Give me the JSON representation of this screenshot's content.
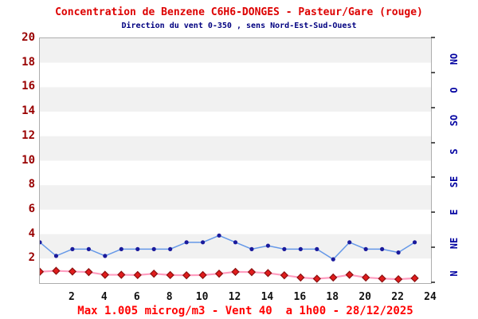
{
  "chart_data": {
    "type": "line",
    "title": "Concentration de Benzene C6H6-DONGES - Pasteur/Gare (rouge)",
    "subtitle": "Direction du vent 0-350 , sens Nord-Est-Sud-Ouest",
    "annotation": "Max 1.005 microg/m3 - Vent 40  a 1h00 - 28/12/2025",
    "x_hours": [
      0,
      1,
      2,
      3,
      4,
      5,
      6,
      7,
      8,
      9,
      10,
      11,
      12,
      13,
      14,
      15,
      16,
      17,
      18,
      19,
      20,
      21,
      22,
      23
    ],
    "x_tick_labels": [
      2,
      4,
      6,
      8,
      10,
      12,
      14,
      16,
      18,
      20,
      22,
      24
    ],
    "x_range": [
      0,
      24
    ],
    "y_left": {
      "range": [
        0,
        20
      ],
      "ticks": [
        20,
        18,
        16,
        14,
        12,
        10,
        8,
        6,
        4,
        2
      ],
      "color": "#990000"
    },
    "y_right": {
      "labels": [
        "N",
        "NE",
        "E",
        "SE",
        "S",
        "SO",
        "O",
        "NO"
      ],
      "degrees": [
        0,
        45,
        90,
        135,
        180,
        225,
        270,
        315
      ],
      "color": "#0000a0",
      "note": "wind direction axis: degrees/18 = left-axis units"
    },
    "series": [
      {
        "name": "Direction du vent",
        "unit": "degres",
        "line_color": "#6598e8",
        "marker": "circle",
        "marker_color": "#1a1a9c",
        "values": [
          60,
          40,
          50,
          50,
          40,
          50,
          50,
          50,
          50,
          60,
          60,
          70,
          60,
          50,
          55,
          50,
          50,
          50,
          35,
          60,
          50,
          50,
          45,
          60
        ]
      },
      {
        "name": "Concentration de Benzene",
        "unit": "microg/m3",
        "line_color": "#ff9dc0",
        "marker": "diamond",
        "marker_color": "#e01c1c",
        "marker_edge_color": "#8b1010",
        "values": [
          0.93,
          1.005,
          0.95,
          0.9,
          0.68,
          0.68,
          0.66,
          0.77,
          0.66,
          0.64,
          0.66,
          0.77,
          0.92,
          0.9,
          0.82,
          0.64,
          0.46,
          0.36,
          0.46,
          0.68,
          0.46,
          0.37,
          0.32,
          0.4
        ]
      }
    ],
    "background_bands": {
      "colors": [
        "#f1f1f1",
        "#ffffff"
      ],
      "units_per_band": 2
    },
    "legend": "none",
    "grid": "horizontal bands only"
  },
  "colors": {
    "title": "#dd0000",
    "subtitle": "#000080",
    "caption": "#ff0000",
    "x_labels": "#111111",
    "plot_border": "#adadad",
    "right_ticks": "#555555"
  }
}
